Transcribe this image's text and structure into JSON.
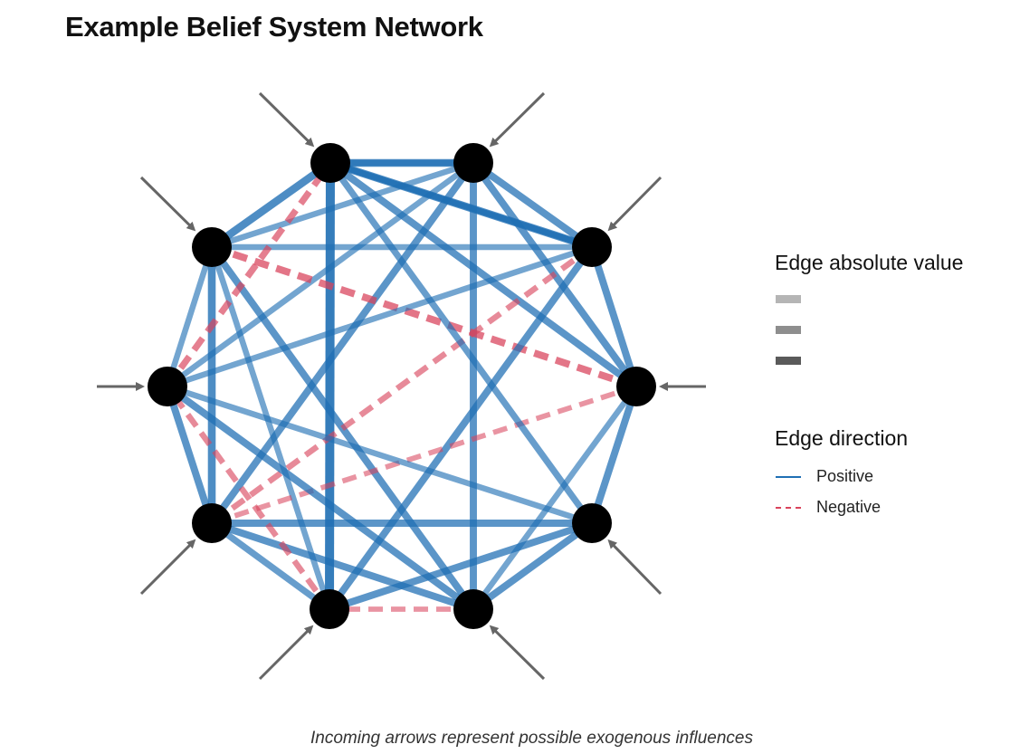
{
  "title": "Example Belief System Network",
  "caption": "Incoming arrows represent possible exogenous influences",
  "colors": {
    "positive": "#1f6fb4",
    "negative": "#d9435c",
    "node": "#000000",
    "arrow": "#666666"
  },
  "legend": {
    "abs_title": "Edge absolute value",
    "abs_swatches": [
      {
        "color": "#b5b5b5"
      },
      {
        "color": "#8e8e8e"
      },
      {
        "color": "#5a5a5a"
      }
    ],
    "dir_title": "Edge direction",
    "directions": [
      {
        "label": "Positive",
        "style": "solid",
        "color": "#1f6fb4"
      },
      {
        "label": "Negative",
        "style": "dashed",
        "color": "#d9435c"
      }
    ]
  },
  "network": {
    "nodes": [
      {
        "id": 0
      },
      {
        "id": 1
      },
      {
        "id": 2
      },
      {
        "id": 3
      },
      {
        "id": 4
      },
      {
        "id": 5
      },
      {
        "id": 6
      },
      {
        "id": 7
      },
      {
        "id": 8
      },
      {
        "id": 9
      }
    ],
    "edges": [
      {
        "from": 0,
        "to": 1,
        "sign": "positive",
        "strength": 0.8
      },
      {
        "from": 0,
        "to": 2,
        "sign": "positive",
        "strength": 0.8
      },
      {
        "from": 0,
        "to": 3,
        "sign": "positive",
        "strength": 0.7
      },
      {
        "from": 0,
        "to": 6,
        "sign": "positive",
        "strength": 1.0
      },
      {
        "from": 0,
        "to": 9,
        "sign": "positive",
        "strength": 0.8
      },
      {
        "from": 1,
        "to": 2,
        "sign": "positive",
        "strength": 0.7
      },
      {
        "from": 1,
        "to": 3,
        "sign": "positive",
        "strength": 0.7
      },
      {
        "from": 1,
        "to": 5,
        "sign": "positive",
        "strength": 0.7
      },
      {
        "from": 1,
        "to": 7,
        "sign": "positive",
        "strength": 0.7
      },
      {
        "from": 1,
        "to": 8,
        "sign": "positive",
        "strength": 0.5
      },
      {
        "from": 1,
        "to": 9,
        "sign": "positive",
        "strength": 0.5
      },
      {
        "from": 1,
        "to": 10,
        "sign": "positive",
        "strength": 0.5
      },
      {
        "from": 9,
        "to": 2,
        "sign": "positive",
        "strength": 0.5
      },
      {
        "from": 9,
        "to": 3,
        "sign": "negative",
        "strength": 0.7
      },
      {
        "from": 9,
        "to": 5,
        "sign": "positive",
        "strength": 0.7
      },
      {
        "from": 9,
        "to": 6,
        "sign": "positive",
        "strength": 0.5
      },
      {
        "from": 9,
        "to": 7,
        "sign": "positive",
        "strength": 0.8
      },
      {
        "from": 9,
        "to": 8,
        "sign": "positive",
        "strength": 0.5
      },
      {
        "from": 2,
        "to": 3,
        "sign": "positive",
        "strength": 0.7
      },
      {
        "from": 2,
        "to": 6,
        "sign": "positive",
        "strength": 0.7
      },
      {
        "from": 2,
        "to": 8,
        "sign": "positive",
        "strength": 0.5
      },
      {
        "from": 2,
        "to": 7,
        "sign": "negative",
        "strength": 0.5
      },
      {
        "from": 2,
        "to": 10,
        "sign": "positive",
        "strength": 0.5
      },
      {
        "from": 3,
        "to": 4,
        "sign": "positive",
        "strength": 0.7
      },
      {
        "from": 3,
        "to": 7,
        "sign": "negative",
        "strength": 0.4
      },
      {
        "from": 3,
        "to": 5,
        "sign": "positive",
        "strength": 0.5
      },
      {
        "from": 4,
        "to": 5,
        "sign": "positive",
        "strength": 0.7
      },
      {
        "from": 4,
        "to": 6,
        "sign": "positive",
        "strength": 0.7
      },
      {
        "from": 4,
        "to": 7,
        "sign": "positive",
        "strength": 0.7
      },
      {
        "from": 4,
        "to": 8,
        "sign": "positive",
        "strength": 0.5
      },
      {
        "from": 5,
        "to": 6,
        "sign": "negative",
        "strength": 0.4
      },
      {
        "from": 5,
        "to": 7,
        "sign": "positive",
        "strength": 0.7
      },
      {
        "from": 5,
        "to": 8,
        "sign": "positive",
        "strength": 0.7
      },
      {
        "from": 6,
        "to": 7,
        "sign": "positive",
        "strength": 0.6
      },
      {
        "from": 6,
        "to": 8,
        "sign": "negative",
        "strength": 0.5
      },
      {
        "from": 7,
        "to": 8,
        "sign": "positive",
        "strength": 0.7
      },
      {
        "from": 8,
        "to": 10,
        "sign": "negative",
        "strength": 0.6
      },
      {
        "from": 10,
        "to": 2,
        "sign": "positive",
        "strength": 0.5
      },
      {
        "from": 10,
        "to": 4,
        "sign": "positive",
        "strength": 0.6
      }
    ]
  }
}
